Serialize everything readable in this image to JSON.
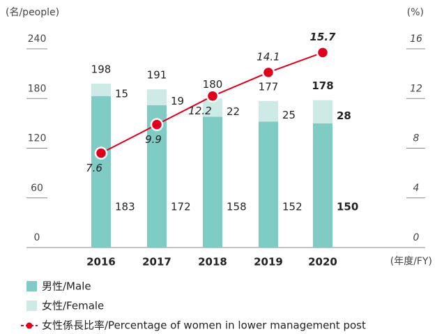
{
  "chart_data": {
    "type": "bar-line",
    "y_axis_label": "(名/people)",
    "y2_axis_label": "(%)",
    "x_axis_label": "(年度/FY)",
    "categories": [
      "2016",
      "2017",
      "2018",
      "2019",
      "2020"
    ],
    "series": [
      {
        "name": "男性/Male",
        "color": "#80cbc4",
        "values": [
          183,
          172,
          158,
          152,
          150
        ]
      },
      {
        "name": "女性/Female",
        "color": "#cdeae6",
        "values": [
          15,
          19,
          22,
          25,
          28
        ]
      },
      {
        "name": "女性係長比率/Percentage of women in lower management post",
        "color": "#e0001b",
        "axis": "y2",
        "values": [
          7.6,
          9.9,
          12.2,
          14.1,
          15.7
        ]
      }
    ],
    "totals": [
      198,
      191,
      180,
      177,
      178
    ],
    "ylim": [
      0,
      240
    ],
    "yticks": [
      0,
      60,
      120,
      180,
      240
    ],
    "y2lim": [
      0,
      16
    ],
    "y2ticks": [
      0,
      4,
      8,
      12,
      16
    ]
  }
}
